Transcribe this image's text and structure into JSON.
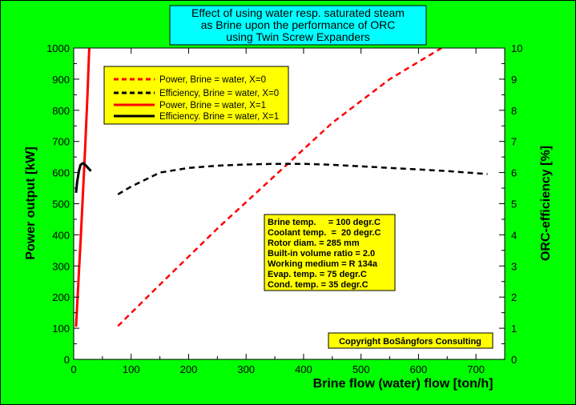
{
  "chart_data": {
    "type": "line",
    "title": [
      "Effect of using water resp. saturated steam",
      "as Brine upon the performance of ORC",
      "using Twin Screw Expanders"
    ],
    "xlabel": "Brine flow (water) flow [ton/h]",
    "ylabel": "Power output [kW]",
    "y2label": "ORC-efficiency [%]",
    "xlim": [
      0,
      750
    ],
    "ylim": [
      0,
      1000
    ],
    "y2lim": [
      0,
      10
    ],
    "xticks": [
      "0",
      "100",
      "200",
      "300",
      "400",
      "500",
      "600",
      "700"
    ],
    "yticks": [
      "0",
      "100",
      "200",
      "300",
      "400",
      "500",
      "600",
      "700",
      "800",
      "900",
      "1000"
    ],
    "y2ticks": [
      "0",
      "1",
      "2",
      "3",
      "4",
      "5",
      "6",
      "7",
      "8",
      "9",
      "10"
    ],
    "legend_position": "top-left",
    "series": [
      {
        "name": "Power, Brine = water, X=0",
        "axis": "left",
        "style": "dashed",
        "color": "#ff0000",
        "x": [
          77,
          150,
          250,
          350,
          450,
          550,
          640
        ],
        "y": [
          107,
          240,
          420,
          590,
          760,
          900,
          1000
        ]
      },
      {
        "name": "Efficiency, Brine = water, X=0",
        "axis": "right",
        "style": "dashed",
        "color": "#000000",
        "x": [
          77,
          100,
          150,
          200,
          250,
          300,
          350,
          400,
          450,
          500,
          550,
          600,
          650,
          700,
          720
        ],
        "y": [
          5.3,
          5.55,
          6.0,
          6.15,
          6.22,
          6.26,
          6.28,
          6.28,
          6.25,
          6.2,
          6.15,
          6.1,
          6.05,
          5.98,
          5.95
        ]
      },
      {
        "name": "Power, Brine = water, X=1",
        "axis": "left",
        "style": "solid",
        "color": "#ff0000",
        "x": [
          4,
          8,
          12,
          16,
          20,
          24,
          27
        ],
        "y": [
          105,
          240,
          380,
          530,
          680,
          850,
          1000
        ]
      },
      {
        "name": "Efficiency. Brine = water, X=1",
        "axis": "right",
        "style": "solid",
        "color": "#000000",
        "x": [
          4,
          6,
          9,
          12,
          16,
          20,
          25,
          30
        ],
        "y": [
          5.35,
          5.7,
          6.05,
          6.25,
          6.3,
          6.25,
          6.15,
          6.05
        ]
      }
    ],
    "annotations": [
      "Brine temp.     = 100 degr.C",
      "Coolant temp.  =  20 degr.C",
      "Rotor diam. = 285 mm",
      "Built-in volume ratio = 2.0",
      "Working medium = R 134a",
      "Evap. temp. = 75 degr.C",
      "Cond. temp. = 35 degr.C"
    ],
    "copyright": "Copyright BoSångfors Consulting",
    "colors": {
      "background": "#00ff00",
      "box": "#ffff00",
      "title_box": "#00ffff",
      "plot": "#ffffff"
    }
  }
}
